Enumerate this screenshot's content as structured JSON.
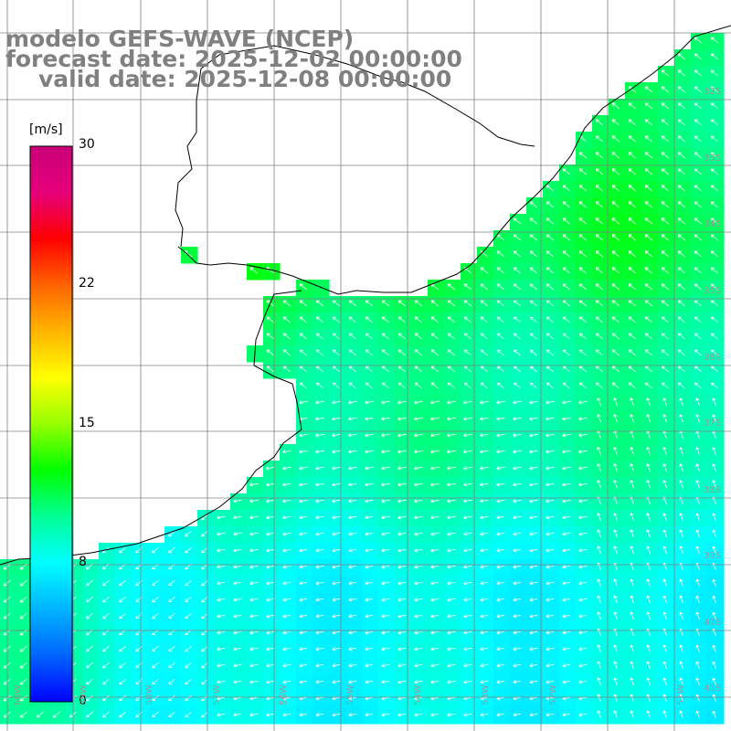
{
  "title": {
    "line1": "modelo GEFS-WAVE (NCEP)",
    "line2": "forecast date: 2025-12-02 00:00:00",
    "line3": "valid date: 2025-12-08 00:00:00"
  },
  "colorbar": {
    "unit": "[m/s]",
    "min": 0,
    "max": 30,
    "ticks": [
      "30",
      "22",
      "15",
      "8",
      "0"
    ],
    "colors": [
      "#0000ff",
      "#0064ff",
      "#00b4ff",
      "#00ffff",
      "#00ff96",
      "#00ff00",
      "#96ff00",
      "#ffff00",
      "#ffb400",
      "#ff6400",
      "#ff0000",
      "#e6007a",
      "#c80078"
    ]
  },
  "lat_labels": [
    "32S",
    "33S",
    "34S",
    "35S",
    "36S",
    "37S",
    "38S",
    "39S",
    "40S",
    "41S"
  ],
  "lon_labels": [
    "60W",
    "59W",
    "58W",
    "57W",
    "56W",
    "55W",
    "54W",
    "53W",
    "52W",
    "51W"
  ],
  "field": {
    "description_units": "m/s",
    "mean_speed_offshore_north": 11,
    "mean_speed_offshore_south": 7,
    "coastal_max_speed": 12
  },
  "colors": {
    "land": "#ffffff",
    "grid": "#808080",
    "coast": "#000000",
    "arrow": "#ffffff"
  }
}
